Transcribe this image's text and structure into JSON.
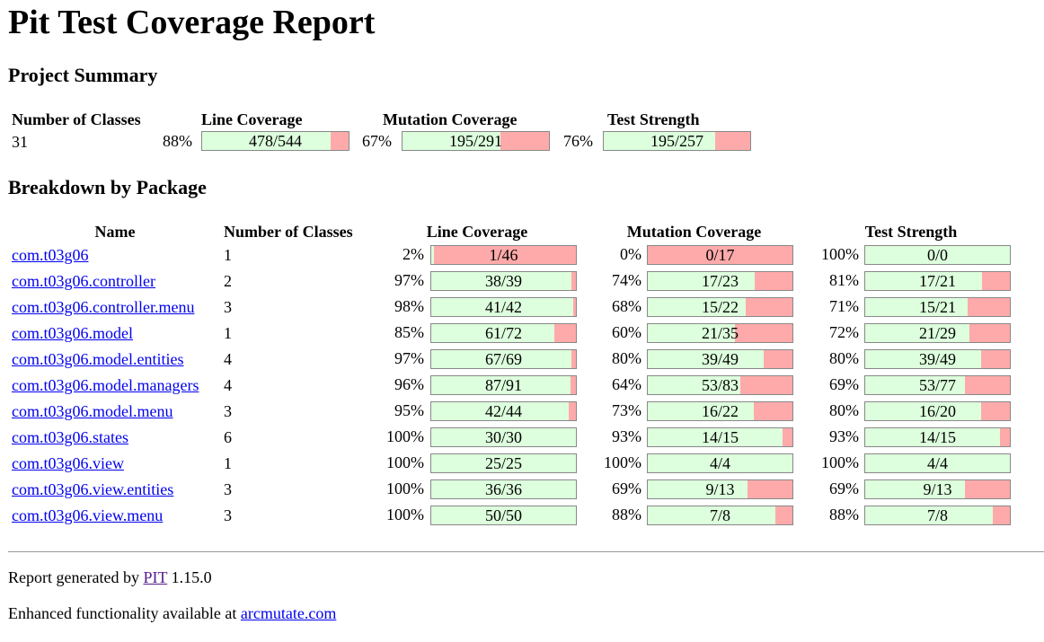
{
  "title": "Pit Test Coverage Report",
  "project_summary": {
    "heading": "Project Summary",
    "headers": {
      "classes": "Number of Classes",
      "line": "Line Coverage",
      "mutation": "Mutation Coverage",
      "strength": "Test Strength"
    },
    "classes": "31",
    "line": {
      "pct": "88%",
      "label": "478/544",
      "ratio": 0.88
    },
    "mutation": {
      "pct": "67%",
      "label": "195/291",
      "ratio": 0.67
    },
    "strength": {
      "pct": "76%",
      "label": "195/257",
      "ratio": 0.76
    }
  },
  "breakdown": {
    "heading": "Breakdown by Package",
    "headers": {
      "name": "Name",
      "classes": "Number of Classes",
      "line": "Line Coverage",
      "mutation": "Mutation Coverage",
      "strength": "Test Strength"
    },
    "rows": [
      {
        "name": "com.t03g06",
        "classes": "1",
        "line_pct": "2%",
        "line": "1/46",
        "line_r": 0.02,
        "mut_pct": "0%",
        "mut": "0/17",
        "mut_r": 0.0,
        "str_pct": "100%",
        "str": "0/0",
        "str_r": 1.0
      },
      {
        "name": "com.t03g06.controller",
        "classes": "2",
        "line_pct": "97%",
        "line": "38/39",
        "line_r": 0.97,
        "mut_pct": "74%",
        "mut": "17/23",
        "mut_r": 0.74,
        "str_pct": "81%",
        "str": "17/21",
        "str_r": 0.81
      },
      {
        "name": "com.t03g06.controller.menu",
        "classes": "3",
        "line_pct": "98%",
        "line": "41/42",
        "line_r": 0.98,
        "mut_pct": "68%",
        "mut": "15/22",
        "mut_r": 0.68,
        "str_pct": "71%",
        "str": "15/21",
        "str_r": 0.71
      },
      {
        "name": "com.t03g06.model",
        "classes": "1",
        "line_pct": "85%",
        "line": "61/72",
        "line_r": 0.85,
        "mut_pct": "60%",
        "mut": "21/35",
        "mut_r": 0.6,
        "str_pct": "72%",
        "str": "21/29",
        "str_r": 0.72
      },
      {
        "name": "com.t03g06.model.entities",
        "classes": "4",
        "line_pct": "97%",
        "line": "67/69",
        "line_r": 0.97,
        "mut_pct": "80%",
        "mut": "39/49",
        "mut_r": 0.8,
        "str_pct": "80%",
        "str": "39/49",
        "str_r": 0.8
      },
      {
        "name": "com.t03g06.model.managers",
        "classes": "4",
        "line_pct": "96%",
        "line": "87/91",
        "line_r": 0.96,
        "mut_pct": "64%",
        "mut": "53/83",
        "mut_r": 0.64,
        "str_pct": "69%",
        "str": "53/77",
        "str_r": 0.69
      },
      {
        "name": "com.t03g06.model.menu",
        "classes": "3",
        "line_pct": "95%",
        "line": "42/44",
        "line_r": 0.95,
        "mut_pct": "73%",
        "mut": "16/22",
        "mut_r": 0.73,
        "str_pct": "80%",
        "str": "16/20",
        "str_r": 0.8
      },
      {
        "name": "com.t03g06.states",
        "classes": "6",
        "line_pct": "100%",
        "line": "30/30",
        "line_r": 1.0,
        "mut_pct": "93%",
        "mut": "14/15",
        "mut_r": 0.93,
        "str_pct": "93%",
        "str": "14/15",
        "str_r": 0.93
      },
      {
        "name": "com.t03g06.view",
        "classes": "1",
        "line_pct": "100%",
        "line": "25/25",
        "line_r": 1.0,
        "mut_pct": "100%",
        "mut": "4/4",
        "mut_r": 1.0,
        "str_pct": "100%",
        "str": "4/4",
        "str_r": 1.0
      },
      {
        "name": "com.t03g06.view.entities",
        "classes": "3",
        "line_pct": "100%",
        "line": "36/36",
        "line_r": 1.0,
        "mut_pct": "69%",
        "mut": "9/13",
        "mut_r": 0.69,
        "str_pct": "69%",
        "str": "9/13",
        "str_r": 0.69
      },
      {
        "name": "com.t03g06.view.menu",
        "classes": "3",
        "line_pct": "100%",
        "line": "50/50",
        "line_r": 1.0,
        "mut_pct": "88%",
        "mut": "7/8",
        "mut_r": 0.88,
        "str_pct": "88%",
        "str": "7/8",
        "str_r": 0.88
      }
    ]
  },
  "footer": {
    "generated_prefix": "Report generated by",
    "pit_link": "PIT",
    "version": "1.15.0",
    "enhanced_prefix": "Enhanced functionality available at",
    "arcmutate_link": "arcmutate.com"
  },
  "colors": {
    "covered": "#ddffdd",
    "uncovered": "#ffaaaa",
    "link": "#0000ee",
    "visited": "#551a8b"
  }
}
